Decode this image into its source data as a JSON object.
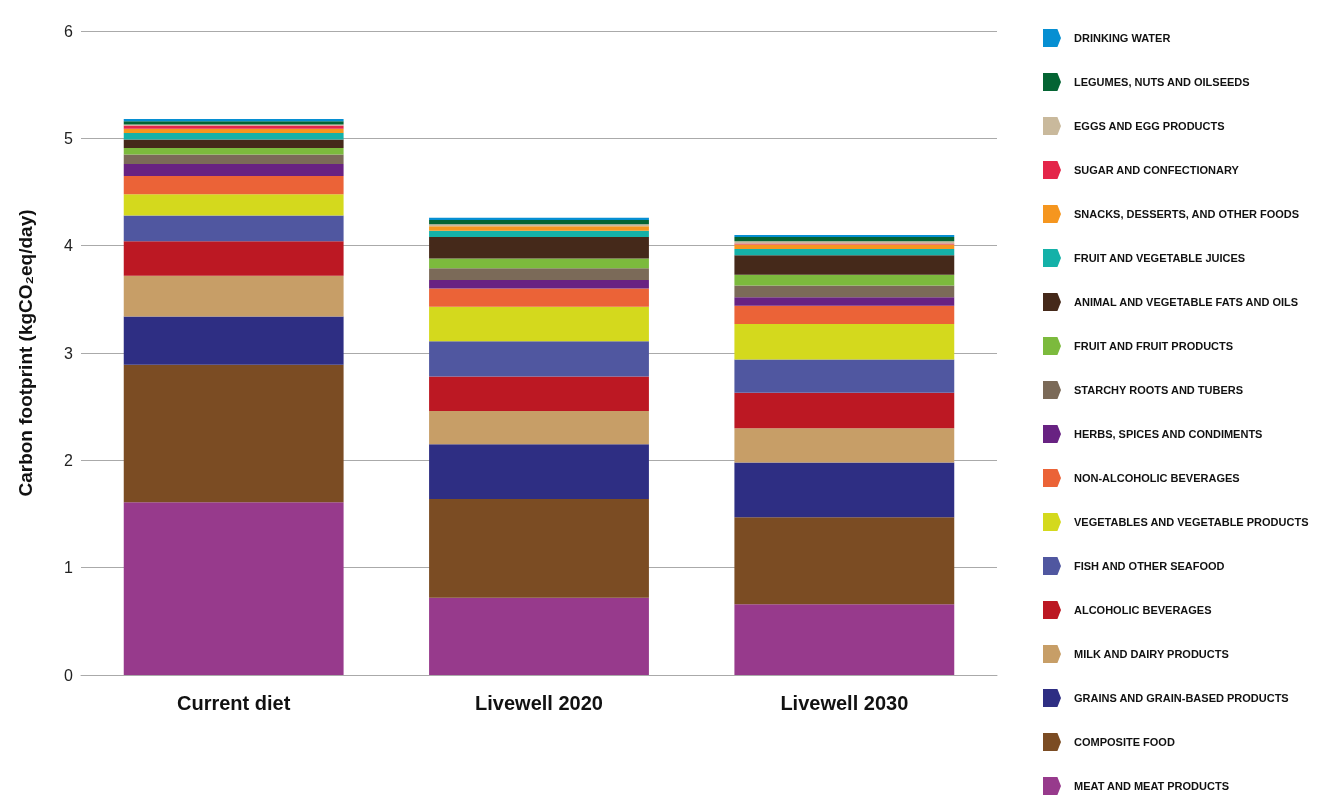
{
  "chart_data": {
    "type": "bar",
    "stacked": true,
    "ylabel": "Carbon footprint (kgCO₂eq/day)",
    "categories": [
      "Current diet",
      "Livewell 2020",
      "Livewell 2030"
    ],
    "ylim": [
      0,
      6
    ],
    "yticks": [
      0,
      1,
      2,
      3,
      4,
      5,
      6
    ],
    "grid": "y",
    "legend": "right",
    "series": [
      {
        "name": "MEAT AND MEAT PRODUCTS",
        "color": "#973a8c",
        "values": [
          1.61,
          0.72,
          0.66
        ]
      },
      {
        "name": "COMPOSITE FOOD",
        "color": "#7b4c23",
        "values": [
          1.28,
          0.92,
          0.81
        ]
      },
      {
        "name": "GRAINS AND GRAIN-BASED PRODUCTS",
        "color": "#2e2e83",
        "values": [
          0.45,
          0.51,
          0.51
        ]
      },
      {
        "name": "MILK AND DAIRY PRODUCTS",
        "color": "#c79e67",
        "values": [
          0.38,
          0.31,
          0.32
        ]
      },
      {
        "name": "ALCOHOLIC BEVERAGES",
        "color": "#bc1823",
        "values": [
          0.32,
          0.32,
          0.33
        ]
      },
      {
        "name": "FISH AND OTHER SEAFOOD",
        "color": "#5057a0",
        "values": [
          0.24,
          0.33,
          0.31
        ]
      },
      {
        "name": "VEGETABLES AND VEGETABLE PRODUCTS",
        "color": "#d4d91d",
        "values": [
          0.2,
          0.32,
          0.33
        ]
      },
      {
        "name": "NON-ALCOHOLIC BEVERAGES",
        "color": "#eb6337",
        "values": [
          0.17,
          0.17,
          0.17
        ]
      },
      {
        "name": "HERBS, SPICES AND CONDIMENTS",
        "color": "#682282",
        "values": [
          0.11,
          0.08,
          0.08
        ]
      },
      {
        "name": "STARCHY ROOTS AND TUBERS",
        "color": "#7b6a58",
        "values": [
          0.09,
          0.11,
          0.11
        ]
      },
      {
        "name": "FRUIT AND FRUIT PRODUCTS",
        "color": "#7cba3d",
        "values": [
          0.06,
          0.09,
          0.1
        ]
      },
      {
        "name": "ANIMAL AND VEGETABLE FATS AND OILS",
        "color": "#45291a",
        "values": [
          0.08,
          0.2,
          0.18
        ]
      },
      {
        "name": "FRUIT AND VEGETABLE JUICES",
        "color": "#14b1a8",
        "values": [
          0.06,
          0.06,
          0.06
        ]
      },
      {
        "name": "SNACKS, DESSERTS, AND OTHER FOODS",
        "color": "#f5961f",
        "values": [
          0.04,
          0.04,
          0.04
        ]
      },
      {
        "name": "SUGAR AND CONFECTIONARY",
        "color": "#e4264a",
        "values": [
          0.03,
          0,
          0.01
        ]
      },
      {
        "name": "EGGS AND EGG PRODUCTS",
        "color": "#c9b99c",
        "values": [
          0.01,
          0.02,
          0.02
        ]
      },
      {
        "name": "LEGUMES, NUTS AND OILSEEDS",
        "color": "#046433",
        "values": [
          0.03,
          0.04,
          0.04
        ]
      },
      {
        "name": "DRINKING WATER",
        "color": "#068fd2",
        "values": [
          0.02,
          0.02,
          0.02
        ]
      }
    ]
  }
}
